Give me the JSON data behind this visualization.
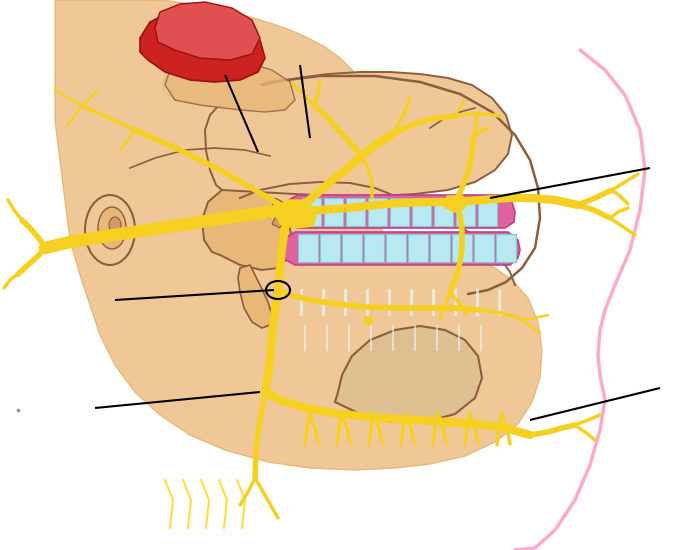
{
  "bg_color": "#ffffff",
  "skin_color": "#f0c898",
  "skin_mid": "#e8b878",
  "skin_dark": "#d4996a",
  "bone_brown": "#8b5e3c",
  "nerve_yellow": "#f5d020",
  "nerve_outline": "#c8a800",
  "muscle_red": "#cc2222",
  "muscle_mid": "#e05050",
  "muscle_light": "#f08080",
  "gum_pink": "#e060a0",
  "tooth_cyan": "#b8e8f0",
  "tooth_white": "#e8f8ff",
  "pointer_color": "#000000",
  "pink_outline": "#ffaacc",
  "sinus_fill": "#dfc090",
  "figsize": [
    7.0,
    5.5
  ],
  "dpi": 100
}
